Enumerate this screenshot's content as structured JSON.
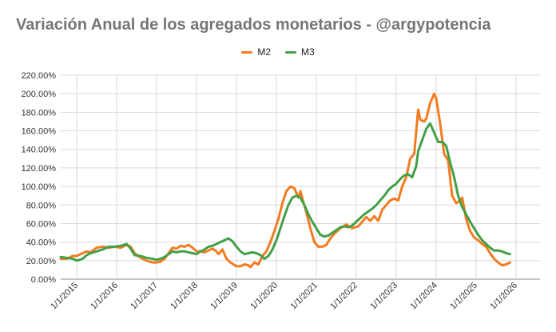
{
  "title": "Variación Anual de los agregados monetarios - @argypotencia",
  "colors": {
    "M2": "#f47b20",
    "M3": "#43a047",
    "grid": "#d9d9d9"
  },
  "chart_data": {
    "type": "line",
    "title": "Variación Anual de los agregados monetarios - @argypotencia",
    "xlabel": "",
    "ylabel": "",
    "ylim": [
      0,
      220
    ],
    "xlim": [
      2014.6,
      2026.6
    ],
    "grid": true,
    "legend_position": "top",
    "y_ticks": [
      "0.00%",
      "20.00%",
      "40.00%",
      "60.00%",
      "80.00%",
      "100.00%",
      "120.00%",
      "140.00%",
      "160.00%",
      "180.00%",
      "200.00%",
      "220.00%"
    ],
    "x_ticks": [
      {
        "label": "1/1/2015",
        "x": 2015
      },
      {
        "label": "1/1/2016",
        "x": 2016
      },
      {
        "label": "1/1/2017",
        "x": 2017
      },
      {
        "label": "1/1/2018",
        "x": 2018
      },
      {
        "label": "1/1/2019",
        "x": 2019
      },
      {
        "label": "1/1/2020",
        "x": 2020
      },
      {
        "label": "1/1/2021",
        "x": 2021
      },
      {
        "label": "1/1/2022",
        "x": 2022
      },
      {
        "label": "1/1/2023",
        "x": 2023
      },
      {
        "label": "1/1/2024",
        "x": 2024
      },
      {
        "label": "1/1/2025",
        "x": 2025
      },
      {
        "label": "1/1/2026",
        "x": 2026
      }
    ],
    "series": [
      {
        "name": "M2",
        "points": [
          [
            2014.6,
            22
          ],
          [
            2014.75,
            22
          ],
          [
            2014.9,
            25
          ],
          [
            2015.0,
            25
          ],
          [
            2015.15,
            28
          ],
          [
            2015.25,
            30
          ],
          [
            2015.35,
            29
          ],
          [
            2015.5,
            34
          ],
          [
            2015.65,
            35
          ],
          [
            2015.8,
            34
          ],
          [
            2015.95,
            35
          ],
          [
            2016.1,
            34
          ],
          [
            2016.25,
            37
          ],
          [
            2016.35,
            35
          ],
          [
            2016.45,
            28
          ],
          [
            2016.6,
            23
          ],
          [
            2016.75,
            20
          ],
          [
            2016.9,
            18
          ],
          [
            2017.0,
            18
          ],
          [
            2017.1,
            19
          ],
          [
            2017.2,
            22
          ],
          [
            2017.3,
            28
          ],
          [
            2017.4,
            34
          ],
          [
            2017.5,
            33
          ],
          [
            2017.6,
            36
          ],
          [
            2017.7,
            35
          ],
          [
            2017.8,
            37
          ],
          [
            2017.9,
            34
          ],
          [
            2018.0,
            30
          ],
          [
            2018.1,
            30
          ],
          [
            2018.2,
            29
          ],
          [
            2018.3,
            31
          ],
          [
            2018.4,
            33
          ],
          [
            2018.5,
            30
          ],
          [
            2018.55,
            27
          ],
          [
            2018.65,
            32
          ],
          [
            2018.75,
            22
          ],
          [
            2018.85,
            18
          ],
          [
            2019.0,
            14
          ],
          [
            2019.1,
            14
          ],
          [
            2019.2,
            16
          ],
          [
            2019.3,
            15
          ],
          [
            2019.35,
            13
          ],
          [
            2019.45,
            18
          ],
          [
            2019.55,
            16
          ],
          [
            2019.65,
            25
          ],
          [
            2019.75,
            30
          ],
          [
            2019.85,
            40
          ],
          [
            2019.95,
            52
          ],
          [
            2020.05,
            65
          ],
          [
            2020.15,
            82
          ],
          [
            2020.25,
            95
          ],
          [
            2020.35,
            100
          ],
          [
            2020.45,
            98
          ],
          [
            2020.55,
            88
          ],
          [
            2020.6,
            95
          ],
          [
            2020.65,
            87
          ],
          [
            2020.75,
            72
          ],
          [
            2020.85,
            55
          ],
          [
            2020.95,
            40
          ],
          [
            2021.05,
            35
          ],
          [
            2021.15,
            35
          ],
          [
            2021.25,
            37
          ],
          [
            2021.35,
            44
          ],
          [
            2021.45,
            49
          ],
          [
            2021.6,
            55
          ],
          [
            2021.75,
            59
          ],
          [
            2021.9,
            55
          ],
          [
            2022.05,
            57
          ],
          [
            2022.15,
            62
          ],
          [
            2022.25,
            67
          ],
          [
            2022.35,
            63
          ],
          [
            2022.45,
            68
          ],
          [
            2022.55,
            63
          ],
          [
            2022.65,
            75
          ],
          [
            2022.75,
            80
          ],
          [
            2022.85,
            85
          ],
          [
            2022.95,
            87
          ],
          [
            2023.05,
            85
          ],
          [
            2023.15,
            100
          ],
          [
            2023.25,
            110
          ],
          [
            2023.35,
            130
          ],
          [
            2023.45,
            135
          ],
          [
            2023.55,
            183
          ],
          [
            2023.6,
            172
          ],
          [
            2023.7,
            170
          ],
          [
            2023.75,
            173
          ],
          [
            2023.85,
            190
          ],
          [
            2023.95,
            200
          ],
          [
            2024.0,
            195
          ],
          [
            2024.1,
            168
          ],
          [
            2024.2,
            135
          ],
          [
            2024.3,
            128
          ],
          [
            2024.4,
            90
          ],
          [
            2024.5,
            82
          ],
          [
            2024.6,
            85
          ],
          [
            2024.65,
            88
          ],
          [
            2024.75,
            65
          ],
          [
            2024.85,
            52
          ],
          [
            2024.95,
            45
          ],
          [
            2025.05,
            42
          ],
          [
            2025.15,
            38
          ],
          [
            2025.25,
            35
          ],
          [
            2025.35,
            28
          ],
          [
            2025.45,
            22
          ],
          [
            2025.55,
            18
          ],
          [
            2025.65,
            15
          ],
          [
            2025.75,
            16
          ],
          [
            2025.85,
            18
          ]
        ]
      },
      {
        "name": "M3",
        "points": [
          [
            2014.6,
            24
          ],
          [
            2014.75,
            23
          ],
          [
            2014.9,
            22
          ],
          [
            2015.0,
            20
          ],
          [
            2015.15,
            22
          ],
          [
            2015.25,
            26
          ],
          [
            2015.35,
            28
          ],
          [
            2015.5,
            30
          ],
          [
            2015.65,
            32
          ],
          [
            2015.8,
            35
          ],
          [
            2015.95,
            35
          ],
          [
            2016.1,
            36
          ],
          [
            2016.25,
            38
          ],
          [
            2016.35,
            33
          ],
          [
            2016.45,
            26
          ],
          [
            2016.6,
            25
          ],
          [
            2016.75,
            23
          ],
          [
            2016.9,
            22
          ],
          [
            2017.0,
            21
          ],
          [
            2017.1,
            22
          ],
          [
            2017.2,
            24
          ],
          [
            2017.3,
            27
          ],
          [
            2017.4,
            30
          ],
          [
            2017.5,
            29
          ],
          [
            2017.6,
            30
          ],
          [
            2017.7,
            30
          ],
          [
            2017.8,
            29
          ],
          [
            2017.9,
            28
          ],
          [
            2018.0,
            27
          ],
          [
            2018.1,
            30
          ],
          [
            2018.2,
            32
          ],
          [
            2018.3,
            35
          ],
          [
            2018.4,
            36
          ],
          [
            2018.5,
            38
          ],
          [
            2018.6,
            40
          ],
          [
            2018.7,
            42
          ],
          [
            2018.8,
            44
          ],
          [
            2018.9,
            41
          ],
          [
            2019.0,
            35
          ],
          [
            2019.1,
            30
          ],
          [
            2019.2,
            27
          ],
          [
            2019.3,
            28
          ],
          [
            2019.4,
            29
          ],
          [
            2019.5,
            28
          ],
          [
            2019.6,
            26
          ],
          [
            2019.7,
            22
          ],
          [
            2019.8,
            25
          ],
          [
            2019.9,
            32
          ],
          [
            2020.0,
            42
          ],
          [
            2020.1,
            55
          ],
          [
            2020.2,
            68
          ],
          [
            2020.3,
            80
          ],
          [
            2020.4,
            88
          ],
          [
            2020.5,
            90
          ],
          [
            2020.6,
            88
          ],
          [
            2020.7,
            80
          ],
          [
            2020.8,
            70
          ],
          [
            2020.9,
            62
          ],
          [
            2021.0,
            55
          ],
          [
            2021.1,
            48
          ],
          [
            2021.2,
            46
          ],
          [
            2021.3,
            47
          ],
          [
            2021.4,
            50
          ],
          [
            2021.5,
            53
          ],
          [
            2021.6,
            56
          ],
          [
            2021.7,
            57
          ],
          [
            2021.8,
            56
          ],
          [
            2021.9,
            58
          ],
          [
            2022.0,
            62
          ],
          [
            2022.1,
            66
          ],
          [
            2022.2,
            70
          ],
          [
            2022.3,
            73
          ],
          [
            2022.4,
            76
          ],
          [
            2022.5,
            80
          ],
          [
            2022.6,
            85
          ],
          [
            2022.7,
            90
          ],
          [
            2022.8,
            96
          ],
          [
            2022.9,
            100
          ],
          [
            2023.0,
            103
          ],
          [
            2023.1,
            108
          ],
          [
            2023.2,
            112
          ],
          [
            2023.3,
            113
          ],
          [
            2023.4,
            110
          ],
          [
            2023.5,
            122
          ],
          [
            2023.55,
            138
          ],
          [
            2023.65,
            150
          ],
          [
            2023.75,
            162
          ],
          [
            2023.85,
            168
          ],
          [
            2023.95,
            158
          ],
          [
            2024.05,
            148
          ],
          [
            2024.15,
            148
          ],
          [
            2024.25,
            144
          ],
          [
            2024.35,
            126
          ],
          [
            2024.45,
            110
          ],
          [
            2024.55,
            90
          ],
          [
            2024.65,
            78
          ],
          [
            2024.75,
            70
          ],
          [
            2024.85,
            62
          ],
          [
            2024.95,
            55
          ],
          [
            2025.05,
            48
          ],
          [
            2025.15,
            42
          ],
          [
            2025.25,
            38
          ],
          [
            2025.35,
            34
          ],
          [
            2025.45,
            31
          ],
          [
            2025.55,
            31
          ],
          [
            2025.65,
            30
          ],
          [
            2025.75,
            28
          ],
          [
            2025.85,
            27
          ]
        ]
      }
    ]
  }
}
